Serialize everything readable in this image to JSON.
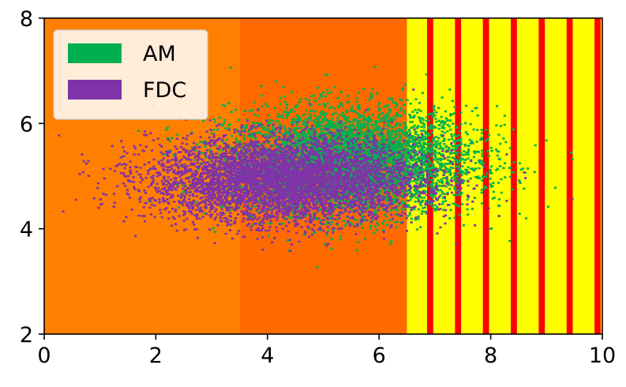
{
  "chart_data": {
    "type": "heatmap",
    "title": "",
    "xlabel": "",
    "ylabel": "",
    "xlim": [
      0,
      10
    ],
    "ylim": [
      2,
      8
    ],
    "xticks": [
      0,
      2,
      4,
      6,
      8,
      10
    ],
    "yticks": [
      2,
      4,
      6,
      8
    ],
    "grid": false,
    "legend_position": "top-left",
    "background": {
      "regions": [
        {
          "x_range": [
            0,
            3.5
          ],
          "color": "#ff7f00"
        },
        {
          "x_range": [
            3.5,
            6.5
          ],
          "color": "#ff6a00"
        },
        {
          "x_range": [
            6.5,
            10
          ],
          "pattern": "alternating red and yellow vertical stripes",
          "stripe_colors": [
            "#ffff00",
            "#ff0000"
          ],
          "stripe_period": 0.5
        }
      ]
    },
    "series": [
      {
        "name": "AM",
        "color": "#00b050",
        "kind": "point cloud",
        "center": [
          5.5,
          5.3
        ],
        "spread": [
          1.1,
          0.5
        ]
      },
      {
        "name": "FDC",
        "color": "#8032a8",
        "kind": "point cloud",
        "center": [
          4.3,
          4.95
        ],
        "spread": [
          1.2,
          0.4
        ]
      }
    ]
  }
}
